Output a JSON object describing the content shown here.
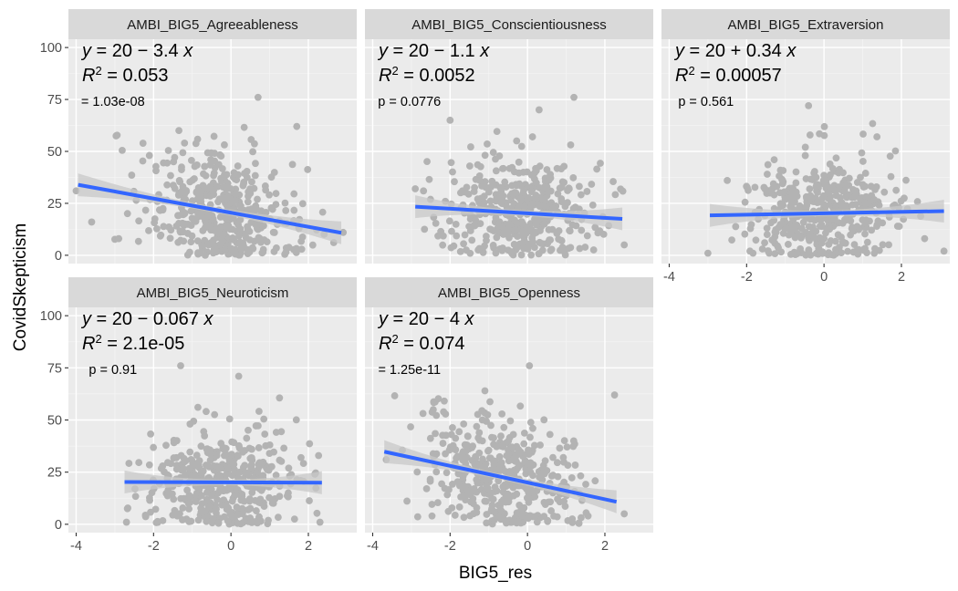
{
  "chart_data": {
    "type": "scatter",
    "xlabel": "BIG5_res",
    "ylabel": "CovidSkepticism",
    "x_ticks": [
      -4,
      -2,
      0,
      2
    ],
    "y_ticks": [
      0,
      25,
      50,
      75,
      100
    ],
    "xlim": [
      -4.2,
      3.25
    ],
    "ylim": [
      -4,
      104
    ],
    "point_color": "#b3b3b3",
    "fit_color": "#3366ff",
    "band_color": "#c8c8c8",
    "panel_bg": "#ebebeb",
    "strip_bg": "#d9d9d9",
    "panels": [
      {
        "name": "AMBI_BIG5_Agreeableness",
        "eq": {
          "intercept": "20",
          "op": "−",
          "slope": "3.4",
          "r2": "0.053"
        },
        "p_label": "= 1.03e-08",
        "p_y": 72,
        "fit": {
          "intercept": 20.5,
          "slope": -3.4,
          "x0": -3.95,
          "x1": 2.85
        },
        "cloud": {
          "n": 420,
          "xmin": -3.3,
          "xmax": 2.8,
          "xsd": 1.0,
          "sd": 15
        },
        "extra_points": [
          [
            -4.0,
            31
          ],
          [
            -3.6,
            16
          ],
          [
            0.7,
            76
          ],
          [
            1.7,
            62
          ],
          [
            -1.2,
            54
          ],
          [
            2.9,
            11
          ],
          [
            -2.9,
            8
          ]
        ]
      },
      {
        "name": "AMBI_BIG5_Conscientiousness",
        "eq": {
          "intercept": "20",
          "op": "−",
          "slope": "1.1",
          "r2": "0.0052"
        },
        "p_label": "p = 0.0776",
        "p_y": 72,
        "fit": {
          "intercept": 20.2,
          "slope": -1.1,
          "x0": -2.9,
          "x1": 2.45
        },
        "cloud": {
          "n": 420,
          "xmin": -2.8,
          "xmax": 2.5,
          "xsd": 1.0,
          "sd": 14
        },
        "extra_points": [
          [
            -2.9,
            32
          ],
          [
            1.2,
            76
          ],
          [
            0.3,
            70
          ],
          [
            2.5,
            5
          ],
          [
            -2.0,
            65
          ]
        ]
      },
      {
        "name": "AMBI_BIG5_Extraversion",
        "eq": {
          "intercept": "20",
          "op": "+",
          "slope": "0.34",
          "r2": "0.00057"
        },
        "p_label": "p = 0.561",
        "p_y": 72,
        "fit": {
          "intercept": 20.2,
          "slope": 0.34,
          "x0": -2.95,
          "x1": 3.1
        },
        "cloud": {
          "n": 420,
          "xmin": -2.8,
          "xmax": 2.7,
          "xsd": 1.0,
          "sd": 14
        },
        "extra_points": [
          [
            -3.0,
            1
          ],
          [
            3.1,
            2
          ],
          [
            -0.4,
            72
          ],
          [
            2.6,
            8
          ],
          [
            -2.5,
            36
          ]
        ]
      },
      {
        "name": "AMBI_BIG5_Neuroticism",
        "eq": {
          "intercept": "20",
          "op": "−",
          "slope": "0.067",
          "r2": "2.1e-05"
        },
        "p_label": "p = 0.91",
        "p_y": 72,
        "fit": {
          "intercept": 20.1,
          "slope": -0.067,
          "x0": -2.75,
          "x1": 2.35
        },
        "cloud": {
          "n": 420,
          "xmin": -2.7,
          "xmax": 2.4,
          "xsd": 1.0,
          "sd": 14
        },
        "extra_points": [
          [
            -2.7,
            1
          ],
          [
            -1.3,
            76
          ],
          [
            2.3,
            1
          ],
          [
            0.2,
            71
          ],
          [
            -2.2,
            4
          ]
        ]
      },
      {
        "name": "AMBI_BIG5_Openness",
        "eq": {
          "intercept": "20",
          "op": "−",
          "slope": "4",
          "r2": "0.074"
        },
        "p_label": "= 1.25e-11",
        "p_y": 72,
        "fit": {
          "intercept": 20.0,
          "slope": -4.0,
          "x0": -3.7,
          "x1": 2.3
        },
        "cloud": {
          "n": 420,
          "xmin": -3.6,
          "xmax": 2.3,
          "xsd": 1.0,
          "sd": 14
        },
        "extra_points": [
          [
            -3.65,
            31
          ],
          [
            2.25,
            62
          ],
          [
            0.05,
            76
          ],
          [
            2.5,
            5
          ],
          [
            -1.1,
            64
          ]
        ]
      }
    ]
  }
}
